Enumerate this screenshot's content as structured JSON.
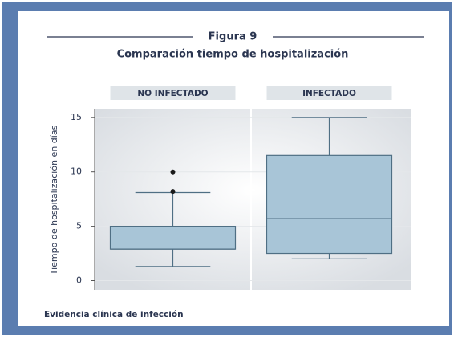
{
  "chart_data": {
    "type": "box",
    "title": "Figura 9",
    "subtitle": "Comparación tiempo de hospitalización",
    "ylabel": "Tiempo de hospitalización en días",
    "xlabel": "Evidencia clínica de infección",
    "categories": [
      "NO INFECTADO",
      "INFECTADO"
    ],
    "boxes": [
      {
        "min": 1.3,
        "q1": 2.9,
        "median": 2.9,
        "q3": 5,
        "max": 8.1,
        "outliers": [
          10,
          8.2
        ]
      },
      {
        "min": 2,
        "q1": 2.5,
        "median": 5.7,
        "q3": 11.5,
        "max": 15,
        "outliers": []
      }
    ],
    "color": "#a8c5d7",
    "ylim": [
      -0.7,
      15.5
    ],
    "yticks": [
      0,
      5,
      10,
      15
    ],
    "grid": true
  }
}
